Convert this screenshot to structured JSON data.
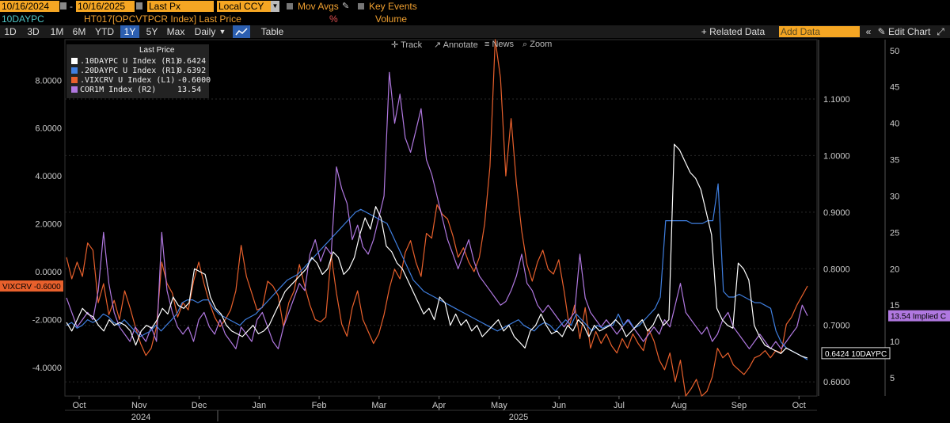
{
  "header": {
    "start_date": "10/16/2024",
    "end_date": "10/16/2025",
    "date_sep": "-",
    "price_field": "Last Px",
    "currency": "Local CCY",
    "mov_avgs": "Mov Avgs",
    "key_events": "Key Events",
    "ticker": "10DAYPC",
    "security": "HT017[OPCVTPCR Index] Last Price",
    "percent": "%",
    "volume": "Volume"
  },
  "toolbar": {
    "periods": [
      "1D",
      "3D",
      "1M",
      "6M",
      "YTD",
      "1Y",
      "5Y",
      "Max"
    ],
    "active_period": "1Y",
    "frequency": "Daily",
    "table": "Table",
    "related": "+ Related Data",
    "add_data_placeholder": "Add Data",
    "edit_chart": "Edit Chart",
    "tools": [
      "Track",
      "Annotate",
      "News",
      "Zoom"
    ]
  },
  "legend": {
    "title": "Last Price",
    "rows": [
      {
        "label": ".10DAYPC U Index  (R1)",
        "value": "0.6424",
        "color": "#ffffff"
      },
      {
        "label": ".20DAYPC U Index  (R1)",
        "value": "0.6392",
        "color": "#3f7fe0"
      },
      {
        "label": ".VIXCRV U Index  (L1)",
        "value": "-0.6000",
        "color": "#e8602c"
      },
      {
        "label": "COR1M Index  (R2)",
        "value": "13.54",
        "color": "#b078e0"
      }
    ]
  },
  "tags": {
    "left": "VIXCRV -0.6000",
    "r1": "0.6424 10DAYPC",
    "r2": "13.54 Implied C"
  },
  "chart_data": {
    "type": "line",
    "x_labels": {
      "months": [
        "Oct",
        "Nov",
        "Dec",
        "Jan",
        "Feb",
        "Mar",
        "Apr",
        "May",
        "Jun",
        "Jul",
        "Aug",
        "Sep",
        "Oct"
      ],
      "years": [
        "2024",
        "2025"
      ]
    },
    "left_axis": {
      "ticks": [
        "8.0000",
        "6.0000",
        "4.0000",
        "2.0000",
        "0.0000",
        "-2.0000",
        "-4.0000"
      ],
      "range": [
        -5.2,
        9.7
      ]
    },
    "right1_axis": {
      "ticks": [
        "1.1000",
        "1.0000",
        "0.9000",
        "0.8000",
        "0.7000",
        "0.6000"
      ],
      "range": [
        0.575,
        1.205
      ]
    },
    "right2_axis": {
      "ticks": [
        "50",
        "45",
        "40",
        "35",
        "30",
        "25",
        "20",
        "15",
        "10",
        "5"
      ],
      "range": [
        2.5,
        51.5
      ]
    },
    "series": [
      {
        "name": ".VIXCRV U Index",
        "axis": "left",
        "color": "#e8602c",
        "values": [
          0.6,
          -0.3,
          0.4,
          -0.2,
          1.2,
          0.9,
          -1.3,
          -0.5,
          -1.8,
          -1.2,
          -2.0,
          -0.8,
          -1.5,
          -2.3,
          -3.0,
          -3.5,
          -3.2,
          -2.3,
          0.4,
          -0.5,
          -0.9,
          -1.9,
          -1.3,
          -1.6,
          -0.4,
          0.4,
          -0.5,
          -1.3,
          -1.9,
          -2.3,
          -2.0,
          -1.6,
          -0.8,
          1.1,
          -0.2,
          -0.9,
          -1.6,
          -1.5,
          -0.4,
          -0.6,
          -1.0,
          -2.3,
          -1.3,
          -0.8,
          0.3,
          -0.6,
          -1.4,
          -2.0,
          -2.1,
          -1.9,
          0.7,
          -0.9,
          -2.2,
          -2.7,
          -1.5,
          -0.8,
          -2.0,
          -2.5,
          -3.0,
          -2.6,
          -1.8,
          -0.7,
          0.1,
          -0.3,
          0.8,
          1.3,
          0.4,
          -0.2,
          1.6,
          1.4,
          2.8,
          2.4,
          2.2,
          1.5,
          0.6,
          1.0,
          0.4,
          0.0,
          0.6,
          2.0,
          4.4,
          9.8,
          8.1,
          4.0,
          6.4,
          3.7,
          1.7,
          0.3,
          -0.4,
          0.4,
          0.9,
          0.1,
          -0.1,
          0.5,
          -0.8,
          -2.3,
          -1.4,
          -2.8,
          -1.5,
          -3.2,
          -2.5,
          -3.0,
          -2.6,
          -3.1,
          -3.4,
          -2.8,
          -3.2,
          -2.6,
          -3.0,
          -3.3,
          -2.4,
          -2.9,
          -3.7,
          -4.1,
          -3.4,
          -4.6,
          -3.7,
          -5.2,
          -4.9,
          -4.5,
          -5.3,
          -5.0,
          -4.4,
          -3.2,
          -3.6,
          -3.4,
          -3.9,
          -4.1,
          -4.3,
          -4.0,
          -3.6,
          -3.5,
          -3.3,
          -3.6,
          -3.3,
          -3.4,
          -2.2,
          -1.9,
          -1.4,
          -1.0,
          -0.6
        ],
        "values_note": "sampled approx. every 2-3 trading days from Oct 2024 to Oct 2025"
      },
      {
        "name": ".10DAYPC U Index",
        "axis": "right1",
        "color": "#ffffff",
        "values": [
          0.705,
          0.69,
          0.71,
          0.73,
          0.72,
          0.715,
          0.7,
          0.69,
          0.71,
          0.7,
          0.705,
          0.7,
          0.69,
          0.665,
          0.69,
          0.7,
          0.695,
          0.71,
          0.73,
          0.72,
          0.75,
          0.735,
          0.73,
          0.74,
          0.8,
          0.795,
          0.79,
          0.75,
          0.73,
          0.72,
          0.7,
          0.69,
          0.685,
          0.68,
          0.69,
          0.7,
          0.685,
          0.69,
          0.7,
          0.72,
          0.74,
          0.76,
          0.77,
          0.78,
          0.79,
          0.8,
          0.82,
          0.81,
          0.79,
          0.8,
          0.83,
          0.82,
          0.79,
          0.8,
          0.82,
          0.86,
          0.89,
          0.87,
          0.91,
          0.89,
          0.84,
          0.83,
          0.81,
          0.8,
          0.78,
          0.76,
          0.74,
          0.72,
          0.73,
          0.71,
          0.75,
          0.74,
          0.7,
          0.72,
          0.7,
          0.71,
          0.69,
          0.7,
          0.68,
          0.69,
          0.7,
          0.71,
          0.69,
          0.7,
          0.68,
          0.67,
          0.66,
          0.69,
          0.7,
          0.72,
          0.7,
          0.685,
          0.69,
          0.68,
          0.7,
          0.69,
          0.71,
          0.7,
          0.68,
          0.7,
          0.69,
          0.695,
          0.7,
          0.71,
          0.7,
          0.68,
          0.69,
          0.7,
          0.71,
          0.69,
          0.7,
          0.72,
          0.7,
          0.71,
          1.02,
          1.01,
          0.99,
          0.97,
          0.96,
          0.94,
          0.9,
          0.86,
          0.73,
          0.71,
          0.7,
          0.695,
          0.81,
          0.8,
          0.78,
          0.7,
          0.68,
          0.665,
          0.66,
          0.655,
          0.65,
          0.66,
          0.655,
          0.65,
          0.645,
          0.6424
        ],
        "values_note": "approximate levels, sampled evenly across the period"
      },
      {
        "name": ".20DAYPC U Index",
        "axis": "right1",
        "color": "#3f7fe0",
        "values": [
          0.7,
          0.705,
          0.695,
          0.7,
          0.71,
          0.705,
          0.71,
          0.72,
          0.715,
          0.705,
          0.7,
          0.71,
          0.7,
          0.69,
          0.68,
          0.685,
          0.69,
          0.7,
          0.69,
          0.7,
          0.71,
          0.72,
          0.74,
          0.745,
          0.745,
          0.74,
          0.745,
          0.745,
          0.73,
          0.72,
          0.715,
          0.71,
          0.705,
          0.7,
          0.71,
          0.715,
          0.72,
          0.73,
          0.74,
          0.75,
          0.76,
          0.77,
          0.78,
          0.785,
          0.79,
          0.8,
          0.81,
          0.82,
          0.83,
          0.84,
          0.85,
          0.86,
          0.87,
          0.88,
          0.89,
          0.9,
          0.905,
          0.9,
          0.895,
          0.89,
          0.885,
          0.88,
          0.86,
          0.84,
          0.82,
          0.8,
          0.78,
          0.77,
          0.76,
          0.755,
          0.75,
          0.745,
          0.74,
          0.735,
          0.73,
          0.725,
          0.72,
          0.715,
          0.71,
          0.705,
          0.7,
          0.695,
          0.69,
          0.695,
          0.7,
          0.705,
          0.71,
          0.7,
          0.695,
          0.69,
          0.7,
          0.705,
          0.7,
          0.69,
          0.7,
          0.71,
          0.7,
          0.72,
          0.71,
          0.7,
          0.69,
          0.7,
          0.695,
          0.7,
          0.7,
          0.72,
          0.7,
          0.71,
          0.695,
          0.7,
          0.71,
          0.72,
          0.73,
          0.75,
          0.885,
          0.885,
          0.885,
          0.885,
          0.885,
          0.88,
          0.88,
          0.88,
          0.885,
          0.885,
          0.95,
          0.76,
          0.75,
          0.75,
          0.755,
          0.75,
          0.745,
          0.74,
          0.74,
          0.735,
          0.73,
          0.69,
          0.67,
          0.66,
          0.655,
          0.65,
          0.645,
          0.6392
        ],
        "values_note": "approximate levels, sampled evenly across the period"
      },
      {
        "name": "COR1M Index",
        "axis": "right2",
        "color": "#b078e0",
        "values": [
          16,
          14,
          12,
          13,
          14,
          13,
          17,
          25,
          18,
          14,
          12,
          11,
          10,
          12,
          11,
          10,
          12,
          10,
          25,
          17,
          14,
          12,
          11,
          12,
          10,
          13,
          14,
          12,
          11,
          13,
          11,
          10,
          9,
          12,
          11,
          10,
          13,
          14,
          12,
          10,
          9,
          12,
          14,
          16,
          18,
          17,
          22,
          24,
          21,
          23,
          22,
          34,
          31,
          29,
          24,
          26,
          23,
          22,
          24,
          27,
          30,
          47,
          40,
          44,
          38,
          36,
          39,
          42,
          35,
          33,
          30,
          27,
          24,
          22,
          20,
          22,
          24,
          21,
          19,
          18,
          17,
          16,
          15,
          15.5,
          17,
          19,
          22,
          18,
          17,
          15,
          14,
          15,
          14,
          13,
          12,
          13,
          14,
          22,
          16,
          14,
          13,
          12,
          13,
          12,
          11,
          12,
          13,
          12,
          11,
          10,
          11,
          12,
          11,
          13,
          12,
          15,
          18,
          14,
          13,
          12,
          11,
          12,
          10,
          11,
          13,
          14,
          12,
          11,
          10,
          9,
          10,
          11,
          10,
          9,
          10,
          9,
          10,
          11,
          12,
          15,
          13.54
        ],
        "values_note": "approximate levels, sampled evenly across the period"
      }
    ]
  }
}
